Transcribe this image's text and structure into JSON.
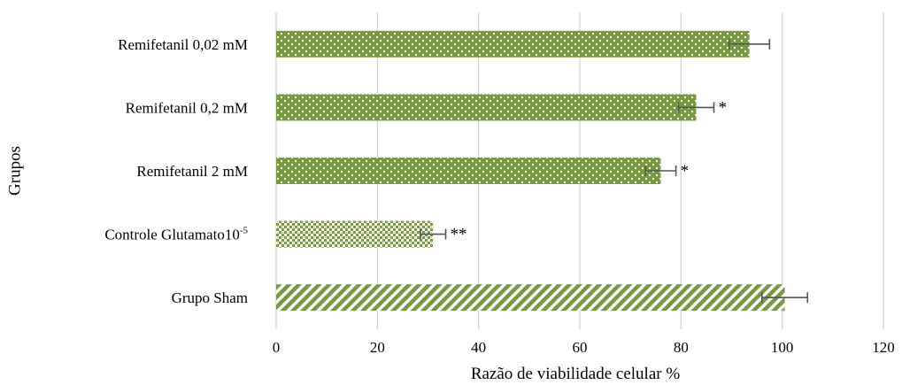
{
  "chart_data": {
    "type": "bar",
    "orientation": "horizontal",
    "xlabel": "Razão de viabilidade celular %",
    "ylabel": "Grupos",
    "xlim": [
      0,
      120
    ],
    "xticks": [
      "0",
      "20",
      "40",
      "60",
      "80",
      "100",
      "120"
    ],
    "grid": true,
    "bar_color": "#77993f",
    "categories": [
      {
        "label": "Remifetanil 0,02 mM",
        "label_sup": "",
        "value": 93.5,
        "error": 4.0,
        "sig": "",
        "pattern": "dots"
      },
      {
        "label": "Remifetanil 0,2 mM",
        "label_sup": "",
        "value": 83.0,
        "error": 3.5,
        "sig": "*",
        "pattern": "dots"
      },
      {
        "label": "Remifetanil 2 mM",
        "label_sup": "",
        "value": 76.0,
        "error": 3.0,
        "sig": "*",
        "pattern": "dots"
      },
      {
        "label": "Controle Glutamato10",
        "label_sup": "-5",
        "value": 31.0,
        "error": 2.5,
        "sig": "**",
        "pattern": "checker"
      },
      {
        "label": "Grupo Sham",
        "label_sup": "",
        "value": 100.5,
        "error": 4.5,
        "sig": "",
        "pattern": "diagonal"
      }
    ]
  }
}
